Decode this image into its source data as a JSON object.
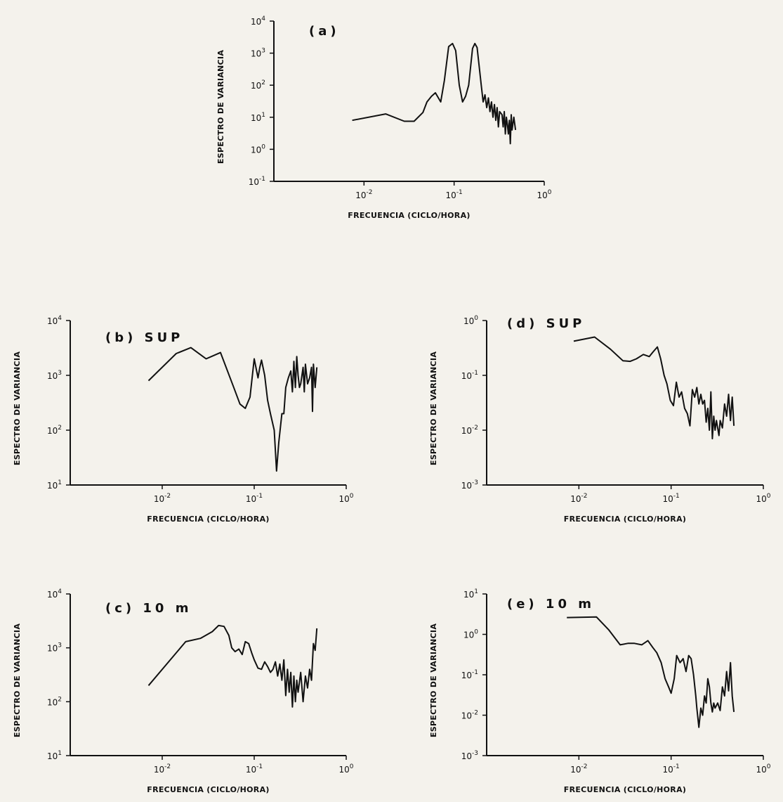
{
  "chart_data": [
    {
      "id": "a",
      "type": "line",
      "title": "(a)",
      "xlabel": "FRECUENCIA (CICLO/HORA)",
      "ylabel": "ESPECTRO DE VARIANCIA",
      "x_scale": "log",
      "y_scale": "log",
      "xlim": [
        0.001,
        1
      ],
      "ylim": [
        0.1,
        10000
      ],
      "x_ticks": [
        {
          "base": "10",
          "exp": "-2"
        },
        {
          "base": "10",
          "exp": "-1"
        },
        {
          "base": "10",
          "exp": "0"
        }
      ],
      "y_ticks": [
        {
          "base": "10",
          "exp": "-1"
        },
        {
          "base": "10",
          "exp": "0"
        },
        {
          "base": "10",
          "exp": "1"
        },
        {
          "base": "10",
          "exp": "2"
        },
        {
          "base": "10",
          "exp": "3"
        },
        {
          "base": "10",
          "exp": "4"
        }
      ],
      "series": [
        {
          "x": [
            0.0074,
            0.0174,
            0.028,
            0.036,
            0.045,
            0.05,
            0.056,
            0.062,
            0.071,
            0.078,
            0.087,
            0.096,
            0.104,
            0.114,
            0.124,
            0.134,
            0.145,
            0.16,
            0.17,
            0.18,
            0.2,
            0.21,
            0.22,
            0.23,
            0.24,
            0.25,
            0.26,
            0.27,
            0.28,
            0.29,
            0.3,
            0.31,
            0.32,
            0.34,
            0.35,
            0.36,
            0.37,
            0.38,
            0.39,
            0.4,
            0.41,
            0.42,
            0.43,
            0.44,
            0.46,
            0.48
          ],
          "y": [
            8,
            12.7,
            7.5,
            7.5,
            14,
            30,
            45,
            58,
            30,
            140,
            1600,
            2000,
            1200,
            100,
            30,
            45,
            100,
            1400,
            2000,
            1500,
            100,
            30,
            50,
            20,
            40,
            15,
            30,
            10,
            25,
            8,
            20,
            5,
            15,
            12,
            5,
            15,
            3,
            10,
            6,
            3,
            8,
            1.5,
            12,
            4,
            10,
            4
          ]
        }
      ]
    },
    {
      "id": "b",
      "type": "line",
      "title": "(b) SUP",
      "xlabel": "FRECUENCIA (CICLO/HORA)",
      "ylabel": "ESPECTRO DE VARIANCIA",
      "x_scale": "log",
      "y_scale": "log",
      "xlim": [
        0.001,
        1
      ],
      "ylim": [
        10,
        10000
      ],
      "x_ticks": [
        {
          "base": "10",
          "exp": "-2"
        },
        {
          "base": "10",
          "exp": "-1"
        },
        {
          "base": "10",
          "exp": "0"
        }
      ],
      "y_ticks": [
        {
          "base": "10",
          "exp": "1"
        },
        {
          "base": "10",
          "exp": "2"
        },
        {
          "base": "10",
          "exp": "3"
        },
        {
          "base": "10",
          "exp": "4"
        }
      ],
      "series": [
        {
          "x": [
            0.0071,
            0.0142,
            0.0205,
            0.03,
            0.043,
            0.06,
            0.07,
            0.08,
            0.09,
            0.1,
            0.11,
            0.115,
            0.12,
            0.13,
            0.14,
            0.15,
            0.165,
            0.175,
            0.185,
            0.2,
            0.21,
            0.22,
            0.235,
            0.25,
            0.26,
            0.27,
            0.28,
            0.29,
            0.3,
            0.31,
            0.32,
            0.34,
            0.35,
            0.36,
            0.38,
            0.4,
            0.42,
            0.43,
            0.44,
            0.46,
            0.48
          ],
          "y": [
            800,
            2500,
            3200,
            2000,
            2600,
            600,
            300,
            250,
            400,
            2000,
            900,
            1400,
            1900,
            1000,
            350,
            200,
            100,
            18,
            60,
            200,
            200,
            600,
            900,
            1200,
            500,
            1800,
            600,
            2200,
            1000,
            600,
            700,
            1400,
            500,
            1600,
            700,
            900,
            1400,
            220,
            1600,
            600,
            1400
          ]
        }
      ]
    },
    {
      "id": "c",
      "type": "line",
      "title": "(c) 10 m",
      "xlabel": "FRECUENCIA (CICLO/HORA)",
      "ylabel": "ESPECTRO DE VARIANCIA",
      "x_scale": "log",
      "y_scale": "log",
      "xlim": [
        0.001,
        1
      ],
      "ylim": [
        10,
        10000
      ],
      "x_ticks": [
        {
          "base": "10",
          "exp": "-2"
        },
        {
          "base": "10",
          "exp": "-1"
        },
        {
          "base": "10",
          "exp": "0"
        }
      ],
      "y_ticks": [
        {
          "base": "10",
          "exp": "1"
        },
        {
          "base": "10",
          "exp": "2"
        },
        {
          "base": "10",
          "exp": "3"
        },
        {
          "base": "10",
          "exp": "4"
        }
      ],
      "series": [
        {
          "x": [
            0.0071,
            0.018,
            0.026,
            0.035,
            0.041,
            0.047,
            0.053,
            0.057,
            0.062,
            0.068,
            0.074,
            0.08,
            0.087,
            0.094,
            0.1,
            0.11,
            0.12,
            0.13,
            0.14,
            0.15,
            0.16,
            0.17,
            0.18,
            0.19,
            0.2,
            0.21,
            0.22,
            0.23,
            0.24,
            0.25,
            0.26,
            0.27,
            0.28,
            0.29,
            0.3,
            0.32,
            0.34,
            0.36,
            0.38,
            0.4,
            0.42,
            0.44,
            0.46,
            0.48
          ],
          "y": [
            200,
            1300,
            1500,
            2000,
            2600,
            2500,
            1700,
            1000,
            850,
            950,
            750,
            1300,
            1200,
            800,
            600,
            420,
            400,
            550,
            450,
            350,
            400,
            550,
            300,
            500,
            250,
            600,
            130,
            400,
            150,
            350,
            80,
            300,
            100,
            250,
            150,
            350,
            100,
            300,
            180,
            400,
            250,
            1200,
            900,
            2300
          ]
        }
      ]
    },
    {
      "id": "d",
      "type": "line",
      "title": "(d) SUP",
      "xlabel": "FRECUENCIA (CICLO/HORA)",
      "ylabel": "ESPECTRO DE VARIANCIA",
      "x_scale": "log",
      "y_scale": "log",
      "xlim": [
        0.001,
        1
      ],
      "ylim": [
        0.001,
        1
      ],
      "x_ticks": [
        {
          "base": "10",
          "exp": "-2"
        },
        {
          "base": "10",
          "exp": "-1"
        },
        {
          "base": "10",
          "exp": "0"
        }
      ],
      "y_ticks": [
        {
          "base": "10",
          "exp": "-3"
        },
        {
          "base": "10",
          "exp": "-2"
        },
        {
          "base": "10",
          "exp": "-1"
        },
        {
          "base": "10",
          "exp": "0"
        }
      ],
      "series": [
        {
          "x": [
            0.0088,
            0.0148,
            0.022,
            0.03,
            0.036,
            0.042,
            0.05,
            0.058,
            0.064,
            0.071,
            0.077,
            0.084,
            0.09,
            0.098,
            0.106,
            0.114,
            0.122,
            0.13,
            0.14,
            0.15,
            0.16,
            0.17,
            0.18,
            0.19,
            0.2,
            0.21,
            0.22,
            0.23,
            0.24,
            0.25,
            0.26,
            0.27,
            0.28,
            0.29,
            0.3,
            0.31,
            0.33,
            0.34,
            0.36,
            0.38,
            0.4,
            0.42,
            0.44,
            0.46,
            0.48
          ],
          "y": [
            0.42,
            0.5,
            0.3,
            0.185,
            0.18,
            0.2,
            0.24,
            0.22,
            0.27,
            0.33,
            0.2,
            0.1,
            0.07,
            0.035,
            0.028,
            0.075,
            0.04,
            0.05,
            0.025,
            0.02,
            0.012,
            0.055,
            0.04,
            0.06,
            0.03,
            0.045,
            0.03,
            0.035,
            0.014,
            0.025,
            0.01,
            0.05,
            0.007,
            0.018,
            0.01,
            0.015,
            0.008,
            0.015,
            0.011,
            0.03,
            0.018,
            0.045,
            0.015,
            0.04,
            0.012
          ]
        }
      ]
    },
    {
      "id": "e",
      "type": "line",
      "title": "(e) 10 m",
      "xlabel": "FRECUENCIA (CICLO/HORA)",
      "ylabel": "ESPECTRO DE VARIANCIA",
      "x_scale": "log",
      "y_scale": "log",
      "xlim": [
        0.001,
        1
      ],
      "ylim": [
        0.001,
        10
      ],
      "x_ticks": [
        {
          "base": "10",
          "exp": "-2"
        },
        {
          "base": "10",
          "exp": "-1"
        },
        {
          "base": "10",
          "exp": "0"
        }
      ],
      "y_ticks": [
        {
          "base": "10",
          "exp": "-3"
        },
        {
          "base": "10",
          "exp": "-2"
        },
        {
          "base": "10",
          "exp": "-1"
        },
        {
          "base": "10",
          "exp": "0"
        },
        {
          "base": "10",
          "exp": "1"
        }
      ],
      "series": [
        {
          "x": [
            0.0074,
            0.0155,
            0.021,
            0.028,
            0.034,
            0.04,
            0.048,
            0.056,
            0.063,
            0.07,
            0.078,
            0.086,
            0.094,
            0.1,
            0.108,
            0.115,
            0.125,
            0.135,
            0.145,
            0.155,
            0.165,
            0.175,
            0.185,
            0.19,
            0.2,
            0.21,
            0.22,
            0.23,
            0.24,
            0.25,
            0.26,
            0.27,
            0.28,
            0.29,
            0.3,
            0.32,
            0.34,
            0.36,
            0.38,
            0.4,
            0.42,
            0.44,
            0.46,
            0.48
          ],
          "y": [
            2.6,
            2.7,
            1.3,
            0.55,
            0.6,
            0.6,
            0.55,
            0.7,
            0.48,
            0.35,
            0.2,
            0.08,
            0.05,
            0.035,
            0.08,
            0.3,
            0.2,
            0.25,
            0.12,
            0.3,
            0.25,
            0.1,
            0.03,
            0.015,
            0.005,
            0.015,
            0.01,
            0.03,
            0.02,
            0.08,
            0.05,
            0.02,
            0.012,
            0.02,
            0.015,
            0.02,
            0.013,
            0.05,
            0.03,
            0.12,
            0.04,
            0.2,
            0.03,
            0.012
          ]
        }
      ]
    }
  ]
}
